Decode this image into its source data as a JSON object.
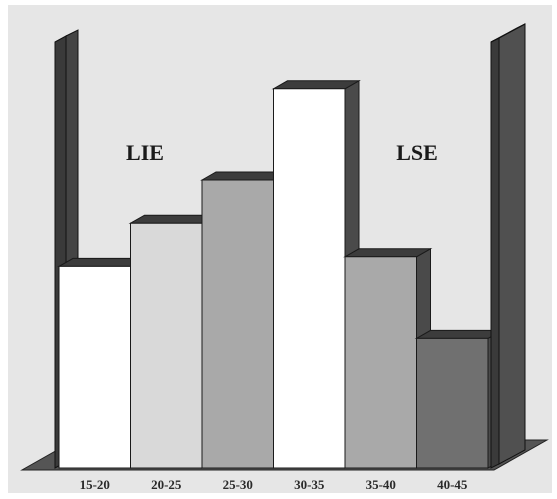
{
  "chart_data": {
    "type": "bar",
    "categories": [
      "15-20",
      "20-25",
      "25-30",
      "30-35",
      "35-40",
      "40-45"
    ],
    "values": [
      42,
      51,
      60,
      79,
      44,
      27
    ],
    "ylim": [
      0,
      100
    ],
    "bar_colors": [
      "#ffffff",
      "#d9d9d9",
      "#a9a9a9",
      "#ffffff",
      "#a9a9a9",
      "#707070"
    ],
    "annotations": [
      {
        "text": "LIE",
        "position": "left-spec-limit"
      },
      {
        "text": "LSE",
        "position": "right-spec-limit"
      }
    ],
    "grid": false,
    "three_d": true,
    "spec_limit_color": "#505050",
    "background": "#e6e6e6"
  }
}
